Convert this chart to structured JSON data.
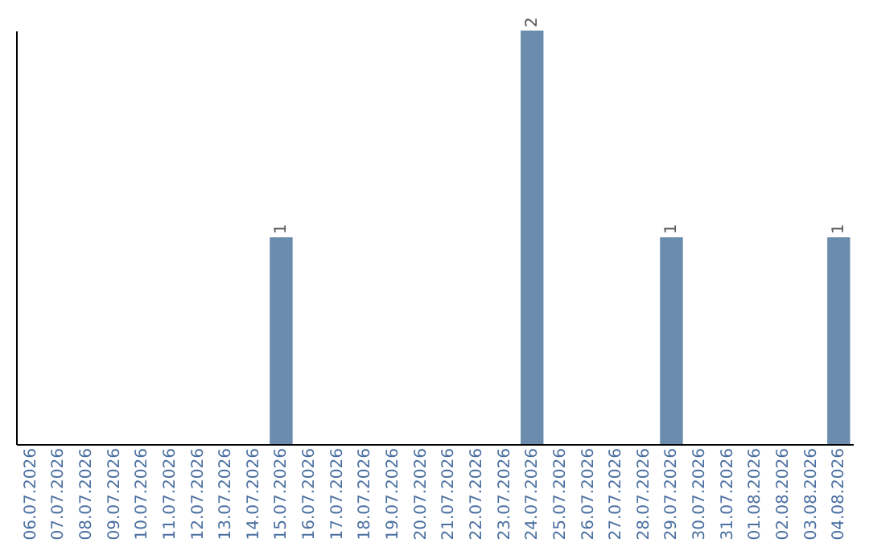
{
  "chart_data": {
    "type": "bar",
    "categories": [
      "06.07.2026",
      "07.07.2026",
      "08.07.2026",
      "09.07.2026",
      "10.07.2026",
      "11.07.2026",
      "12.07.2026",
      "13.07.2026",
      "14.07.2026",
      "15.07.2026",
      "16.07.2026",
      "17.07.2026",
      "18.07.2026",
      "19.07.2026",
      "20.07.2026",
      "21.07.2026",
      "22.07.2026",
      "23.07.2026",
      "24.07.2026",
      "25.07.2026",
      "26.07.2026",
      "27.07.2026",
      "28.07.2026",
      "29.07.2026",
      "30.07.2026",
      "31.07.2026",
      "01.08.2026",
      "02.08.2026",
      "03.08.2026",
      "04.08.2026"
    ],
    "values": [
      0,
      0,
      0,
      0,
      0,
      0,
      0,
      0,
      0,
      1,
      0,
      0,
      0,
      0,
      0,
      0,
      0,
      0,
      2,
      0,
      0,
      0,
      0,
      1,
      0,
      0,
      0,
      0,
      0,
      1
    ],
    "value_labels": [
      null,
      null,
      null,
      null,
      null,
      null,
      null,
      null,
      null,
      "1",
      null,
      null,
      null,
      null,
      null,
      null,
      null,
      null,
      "2",
      null,
      null,
      null,
      null,
      "1",
      null,
      null,
      null,
      null,
      null,
      "1"
    ],
    "color": "#6b8cad",
    "grid": false,
    "tick_labels": "x"
  }
}
